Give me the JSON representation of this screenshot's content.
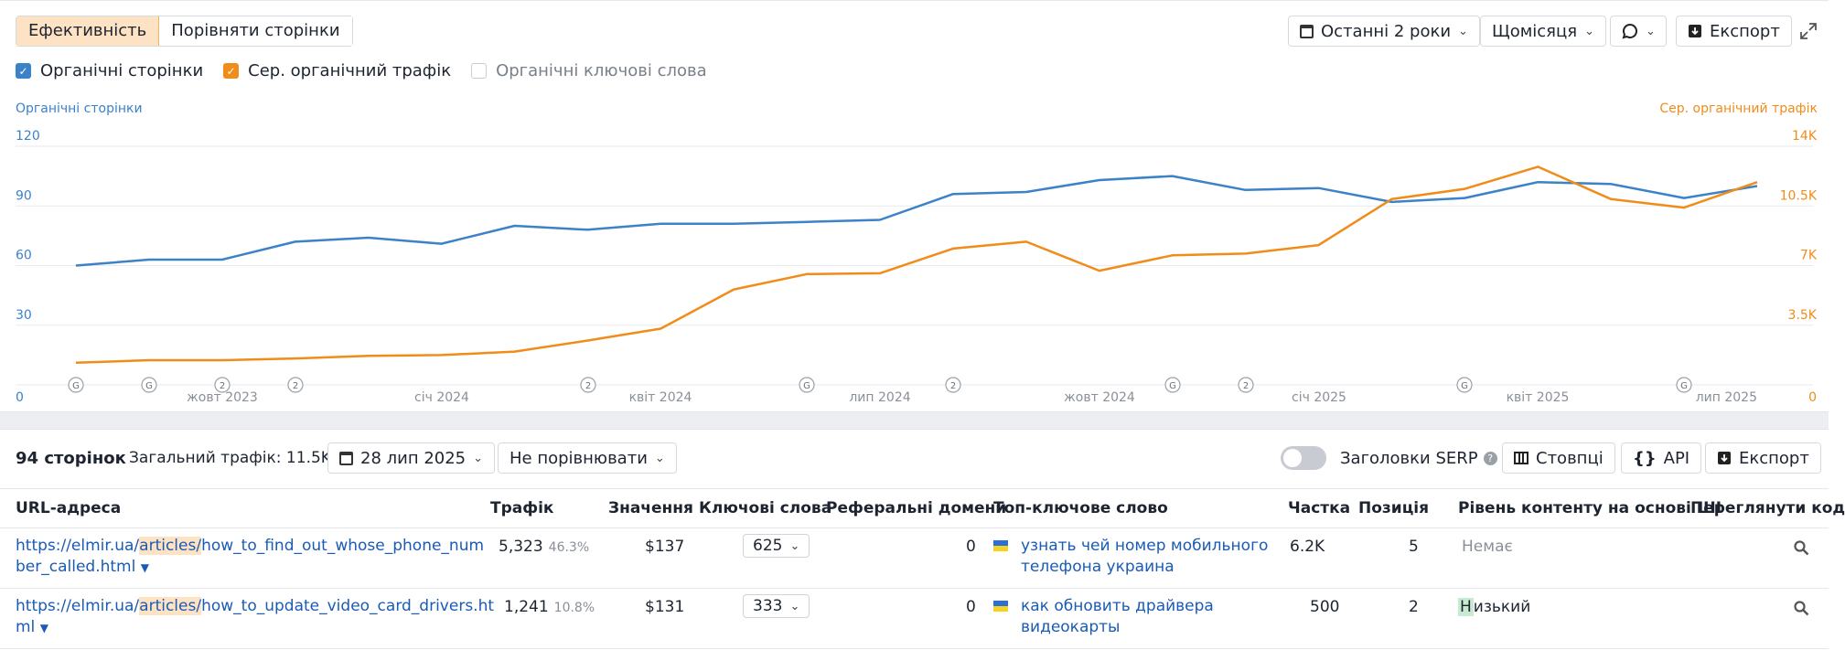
{
  "toolbar": {
    "tab_effectiveness": "Ефективність",
    "tab_compare": "Порівняти сторінки",
    "period": "Останні 2 роки",
    "interval": "Щомісяця",
    "export": "Експорт"
  },
  "legend": {
    "organic_pages": "Органічні сторінки",
    "avg_traffic": "Сер. органічний трафік",
    "organic_keywords": "Органічні ключові слова"
  },
  "chart_data": {
    "type": "line",
    "left_axis_title": "Органічні сторінки",
    "right_axis_title": "Сер. органічний трафік",
    "left_ticks": [
      "0",
      "30",
      "60",
      "90",
      "120"
    ],
    "right_ticks": [
      "0",
      "3.5K",
      "7K",
      "10.5K",
      "14K"
    ],
    "left_ylim": [
      0,
      120
    ],
    "right_ylim": [
      0,
      14000
    ],
    "x_ticks": [
      "жовт 2023",
      "січ 2024",
      "квіт 2024",
      "лип 2024",
      "жовт 2024",
      "січ 2025",
      "квіт 2025",
      "лип 2025"
    ],
    "series": [
      {
        "name": "Органічні сторінки",
        "axis": "left",
        "color": "#3b82c8",
        "values": [
          60,
          63,
          63,
          72,
          74,
          71,
          80,
          78,
          81,
          81,
          82,
          83,
          96,
          97,
          103,
          105,
          98,
          99,
          92,
          94,
          102,
          101,
          94,
          100
        ]
      },
      {
        "name": "Сер. органічний трафік",
        "axis": "right",
        "color": "#f08c1a",
        "values": [
          1300,
          1450,
          1450,
          1550,
          1700,
          1750,
          1950,
          2600,
          3300,
          5600,
          6500,
          6550,
          8000,
          8400,
          6700,
          7600,
          7700,
          8200,
          10900,
          11500,
          12800,
          10900,
          10400,
          11900
        ]
      },
      {
        "name": "Органічні ключові слова",
        "axis": "left",
        "color": "#c9cdd3",
        "values": []
      }
    ],
    "markers": [
      "G",
      "G",
      "2",
      "2",
      "2",
      "G",
      "2",
      "G",
      "2",
      "G",
      "G"
    ],
    "grid": true
  },
  "table_toolbar": {
    "pages_count": "94 сторінок",
    "total_traffic": "Загальний трафік: 11.5K",
    "date": "28 лип 2025",
    "compare": "Не порівнювати",
    "serp_titles": "Заголовки SERP",
    "columns": "Стовпці",
    "api": "API",
    "export": "Експорт"
  },
  "columns": {
    "url": "URL-адреса",
    "traffic": "Трафік",
    "value": "Значення",
    "keywords": "Ключові слова",
    "ref_domains": "Реферальні домени",
    "top_keyword": "Топ-ключове слово",
    "share": "Частка",
    "position": "Позиція",
    "ai_content": "Рівень контенту на основі ШІ",
    "view_code": "Переглянути код"
  },
  "rows": [
    {
      "url_prefix": "https://elmir.ua/",
      "url_hl": "articles/",
      "url_rest": "how_to_find_out_whose_phone_num",
      "url_line2": "ber_called.html",
      "traffic": "5,323",
      "traffic_pct": "46.3%",
      "value": "$137",
      "keywords": "625",
      "ref_domains": "0",
      "top_kw_line1": "узнать чей номер мобильного",
      "top_kw_line2": "телефона украина",
      "share": "6.2K",
      "position": "5",
      "ai_level": "Немає"
    },
    {
      "url_prefix": "https://elmir.ua/",
      "url_hl": "articles/",
      "url_rest": "how_to_update_video_card_drivers.ht",
      "url_line2": "ml",
      "traffic": "1,241",
      "traffic_pct": "10.8%",
      "value": "$131",
      "keywords": "333",
      "ref_domains": "0",
      "top_kw_line1": "как обновить драйвера",
      "top_kw_line2": "видеокарты",
      "share": "500",
      "position": "2",
      "ai_level_hl": "Н",
      "ai_level_rest": "изький"
    }
  ]
}
